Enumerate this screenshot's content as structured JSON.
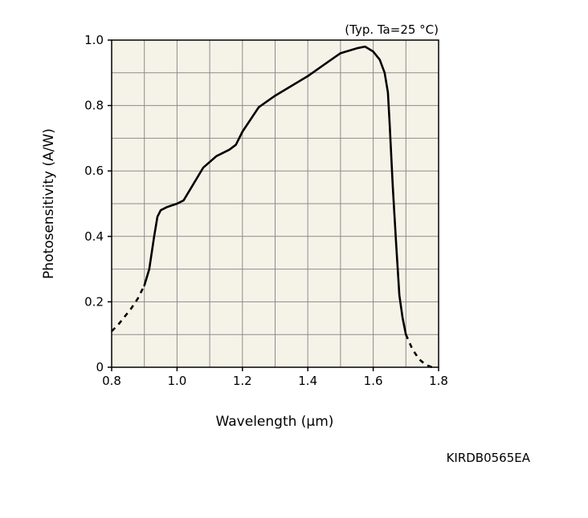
{
  "chart_data": {
    "type": "line",
    "title": "",
    "condition_note": "(Typ. Ta=25 °C)",
    "xlabel": "Wavelength (µm)",
    "ylabel": "Photosensitivity (A/W)",
    "xlim": [
      0.8,
      1.8
    ],
    "ylim": [
      0,
      1.0
    ],
    "x_ticks": [
      0.8,
      1.0,
      1.2,
      1.4,
      1.6,
      1.8
    ],
    "x_tick_labels": [
      "0.8",
      "1.0",
      "1.2",
      "1.4",
      "1.6",
      "1.8"
    ],
    "y_ticks": [
      0,
      0.2,
      0.4,
      0.6,
      0.8,
      1.0
    ],
    "y_tick_labels": [
      "0",
      "0.2",
      "0.4",
      "0.6",
      "0.8",
      "1.0"
    ],
    "grid": true,
    "x_grid_step": 0.1,
    "y_grid_step": 0.1,
    "plot_background": "#f5f3e8",
    "line_color": "#000000",
    "grid_color": "#8c8c8c",
    "series": [
      {
        "style": "dashed",
        "x": [
          0.8,
          0.82,
          0.84,
          0.86,
          0.88,
          0.9
        ],
        "y": [
          0.11,
          0.13,
          0.155,
          0.18,
          0.21,
          0.25
        ]
      },
      {
        "style": "solid",
        "x": [
          0.9,
          0.915,
          0.93,
          0.94,
          0.95,
          0.97,
          1.0,
          1.02,
          1.05,
          1.08,
          1.12,
          1.16,
          1.18,
          1.2,
          1.25,
          1.3,
          1.35,
          1.4,
          1.45,
          1.5,
          1.55,
          1.575,
          1.6,
          1.62,
          1.635,
          1.645,
          1.65,
          1.655,
          1.66,
          1.67,
          1.68,
          1.69,
          1.7
        ],
        "y": [
          0.25,
          0.3,
          0.4,
          0.46,
          0.48,
          0.49,
          0.5,
          0.51,
          0.56,
          0.61,
          0.645,
          0.665,
          0.68,
          0.72,
          0.795,
          0.83,
          0.86,
          0.89,
          0.925,
          0.96,
          0.975,
          0.98,
          0.965,
          0.94,
          0.9,
          0.84,
          0.75,
          0.65,
          0.55,
          0.38,
          0.22,
          0.15,
          0.1
        ]
      },
      {
        "style": "dashed",
        "x": [
          1.7,
          1.72,
          1.74,
          1.76,
          1.78
        ],
        "y": [
          0.1,
          0.055,
          0.025,
          0.008,
          0.0
        ]
      }
    ]
  },
  "document_code": "KIRDB0565EA"
}
